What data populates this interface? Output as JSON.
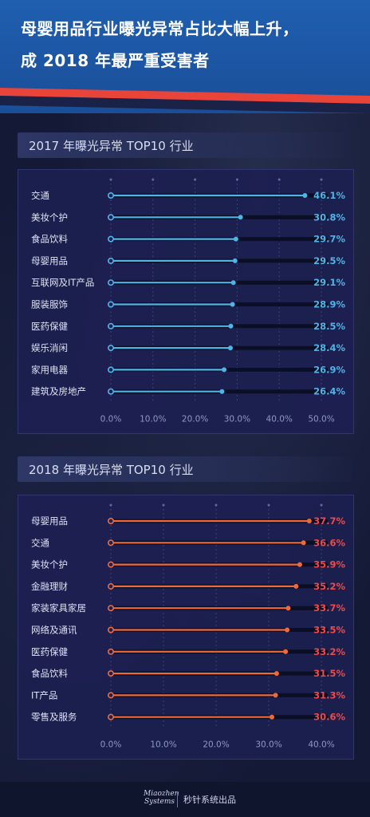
{
  "header": {
    "title_line1": "母婴用品行业曝光异常占比大幅上升，",
    "title_line2": "成 2018 年最严重受害者"
  },
  "colors": {
    "header_blue": "#1f5fb0",
    "stripe_red": "#e8443a",
    "series_2017": "#4fb4e8",
    "series_2018": "#ef6a3a",
    "value_2017": "#4fb4e8",
    "value_2018": "#ef4a4a",
    "track": "#0b0f26"
  },
  "chart_data": [
    {
      "type": "bar",
      "title": "2017 年曝光异常 TOP10 行业",
      "categories": [
        "交通",
        "美妆个护",
        "食品饮料",
        "母婴用品",
        "互联网及IT产品",
        "服装服饰",
        "医药保健",
        "娱乐消闲",
        "家用电器",
        "建筑及房地产"
      ],
      "values": [
        46.1,
        30.8,
        29.7,
        29.5,
        29.1,
        28.9,
        28.5,
        28.4,
        26.9,
        26.4
      ],
      "value_labels": [
        "46.1%",
        "30.8%",
        "29.7%",
        "29.5%",
        "29.1%",
        "28.9%",
        "28.5%",
        "28.4%",
        "26.9%",
        "26.4%"
      ],
      "xlim": [
        0,
        50
      ],
      "xticks": [
        "0.0%",
        "10.0%",
        "20.0%",
        "30.0%",
        "40.0%",
        "50.0%"
      ],
      "grid": true
    },
    {
      "type": "bar",
      "title": "2018 年曝光异常 TOP10 行业",
      "categories": [
        "母婴用品",
        "交通",
        "美妆个护",
        "金融理财",
        "家装家具家居",
        "网络及通讯",
        "医药保健",
        "食品饮料",
        "IT产品",
        "零售及服务"
      ],
      "values": [
        37.7,
        36.6,
        35.9,
        35.2,
        33.7,
        33.5,
        33.2,
        31.5,
        31.3,
        30.6
      ],
      "value_labels": [
        "37.7%",
        "36.6%",
        "35.9%",
        "35.2%",
        "33.7%",
        "33.5%",
        "33.2%",
        "31.5%",
        "31.3%",
        "30.6%"
      ],
      "xlim": [
        0,
        40
      ],
      "xticks": [
        "0.0%",
        "10.0%",
        "20.0%",
        "30.0%",
        "40.0%"
      ],
      "grid": true
    }
  ],
  "footer": {
    "brand_line1": "Miaozhen",
    "brand_line2": "Systems",
    "text": "秒针系统出品"
  }
}
